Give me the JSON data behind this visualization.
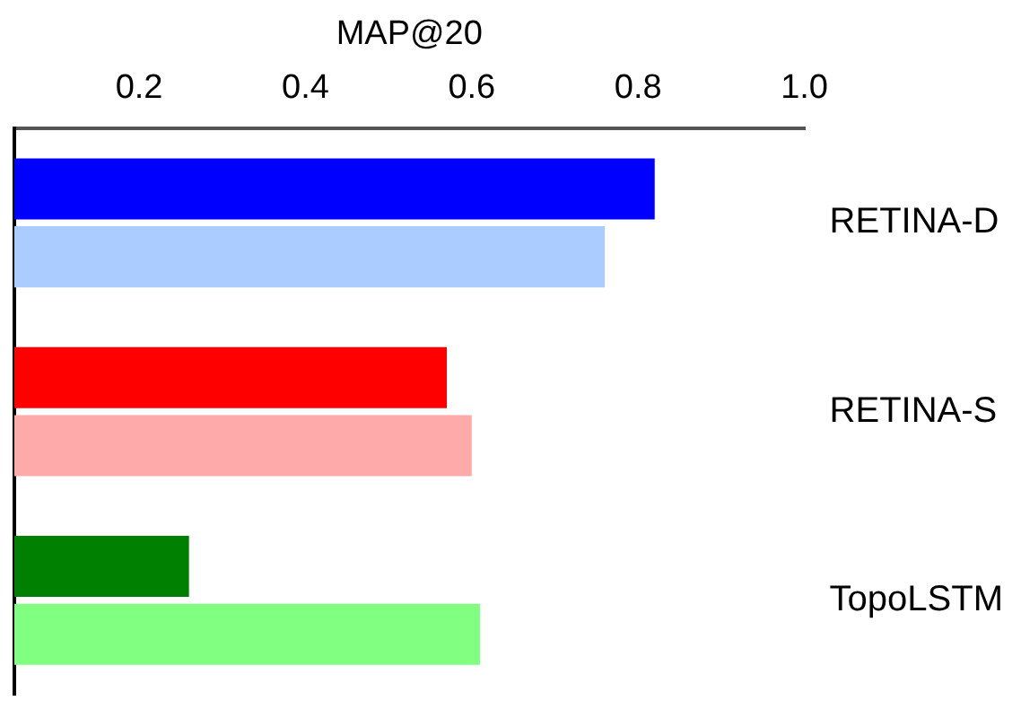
{
  "chart_data": {
    "type": "bar",
    "orientation": "horizontal",
    "xlabel": "MAP@20",
    "categories": [
      "RETINA-D",
      "RETINA-S",
      "TopoLSTM"
    ],
    "series": [
      {
        "colors": [
          "#0000ff",
          "#ff0000",
          "#008000"
        ],
        "values": [
          0.82,
          0.57,
          0.26
        ]
      },
      {
        "colors": [
          "#aaccff",
          "#ffaaaa",
          "#80ff80"
        ],
        "values": [
          0.76,
          0.6,
          0.61
        ]
      }
    ],
    "xlim": [
      0.05,
      1.0
    ],
    "xticks": [
      {
        "value": 0.2,
        "label": "0.2"
      },
      {
        "value": 0.4,
        "label": "0.4"
      },
      {
        "value": 0.6,
        "label": "0.6"
      },
      {
        "value": 0.8,
        "label": "0.8"
      },
      {
        "value": 1.0,
        "label": "1.0"
      }
    ],
    "grid": false,
    "legend": false
  }
}
